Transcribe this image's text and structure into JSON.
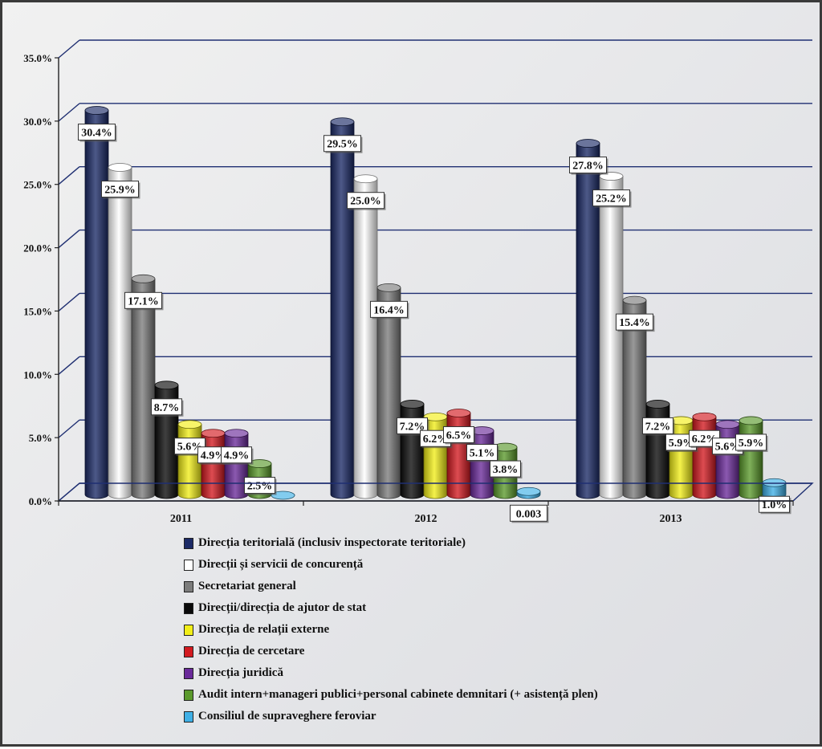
{
  "chart_data": {
    "type": "bar",
    "categories": [
      "2011",
      "2012",
      "2013"
    ],
    "ylim": [
      0,
      35
    ],
    "yticks": [
      "0.0%",
      "5.0%",
      "10.0%",
      "15.0%",
      "20.0%",
      "25.0%",
      "30.0%",
      "35.0%"
    ],
    "grid": true,
    "legend_position": "bottom",
    "series": [
      {
        "name": "Direcția teritorială (inclusiv inspectorate teritoriale)",
        "color": "#1b2a66",
        "values": [
          30.4,
          29.5,
          27.8
        ],
        "labels": [
          "30.4%",
          "29.5%",
          "27.8%"
        ]
      },
      {
        "name": "Direcții și servicii de concurență",
        "color": "#ffffff",
        "values": [
          25.9,
          25.0,
          25.2
        ],
        "labels": [
          "25.9%",
          "25.0%",
          "25.2%"
        ]
      },
      {
        "name": "Secretariat general",
        "color": "#7c7c7c",
        "values": [
          17.1,
          16.4,
          15.4
        ],
        "labels": [
          "17.1%",
          "16.4%",
          "15.4%"
        ]
      },
      {
        "name": "Direcții/direcția de ajutor de stat",
        "color": "#0a0a0a",
        "values": [
          8.7,
          7.2,
          7.2
        ],
        "labels": [
          "8.7%",
          "7.2%",
          "7.2%"
        ]
      },
      {
        "name": "Direcția de relații externe",
        "color": "#f2ee18",
        "values": [
          5.6,
          6.2,
          5.9
        ],
        "labels": [
          "5.6%",
          "6.2%",
          "5.9%"
        ]
      },
      {
        "name": "Direcția de cercetare",
        "color": "#d31a20",
        "values": [
          4.9,
          6.5,
          6.2
        ],
        "labels": [
          "4.9%",
          "6.5%",
          "6.2%"
        ]
      },
      {
        "name": "Direcția juridică",
        "color": "#6a2a9a",
        "values": [
          4.9,
          5.1,
          5.6
        ],
        "labels": [
          "4.9%",
          "5.1%",
          "5.6%"
        ]
      },
      {
        "name": "Audit intern+manageri publici+personal cabinete demnitari (+ asistență plen)",
        "color": "#5b9a2c",
        "values": [
          2.5,
          3.8,
          5.9
        ],
        "labels": [
          "2.5%",
          "3.8%",
          "5.9%"
        ]
      },
      {
        "name": "Consiliul de supraveghere feroviar",
        "color": "#3fb0e6",
        "values": [
          0.0,
          0.3,
          1.0
        ],
        "labels": [
          "",
          "0.003",
          "1.0%"
        ]
      }
    ]
  }
}
